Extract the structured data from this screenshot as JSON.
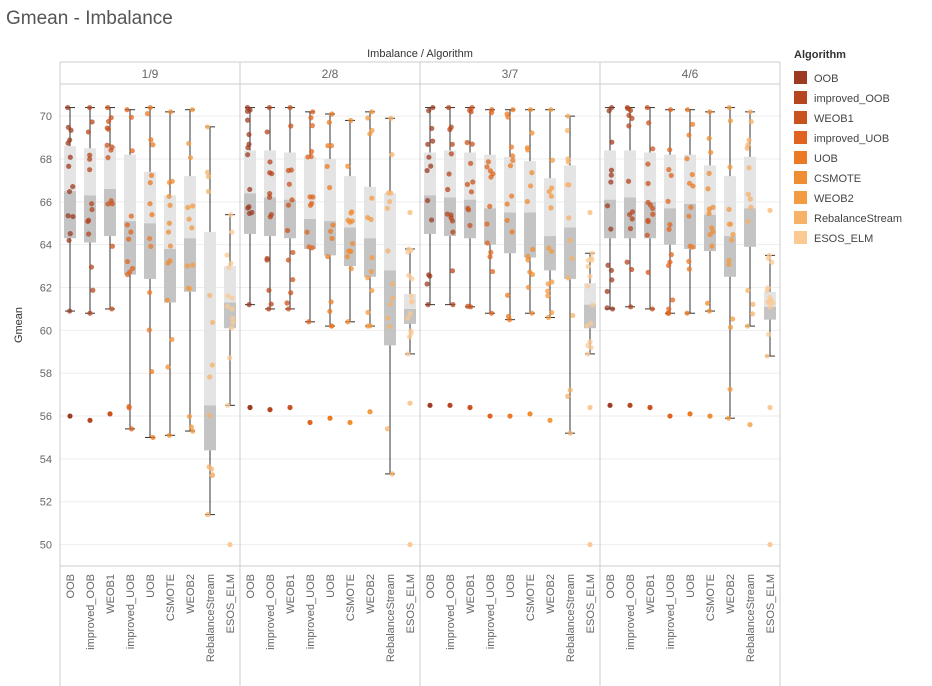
{
  "title": "Gmean - Imbalance",
  "chart_data": {
    "type": "box",
    "title": "Gmean - Imbalance",
    "header_title": "Imbalance / Algorithm",
    "ylabel": "Gmean",
    "ylim": [
      49,
      71.5
    ],
    "yticks": [
      50,
      52,
      54,
      56,
      58,
      60,
      62,
      64,
      66,
      68,
      70
    ],
    "grid": true,
    "legend_title": "Algorithm",
    "legend_position": "right",
    "facets": [
      "1/9",
      "2/8",
      "3/7",
      "4/6"
    ],
    "algorithms": [
      "OOB",
      "improved_OOB",
      "WEOB1",
      "improved_UOB",
      "UOB",
      "CSMOTE",
      "WEOB2",
      "RebalanceStream",
      "ESOS_ELM"
    ],
    "colors": [
      "#9c3b22",
      "#b5461f",
      "#c9531f",
      "#e0641f",
      "#ec7a24",
      "#f08c31",
      "#f39b40",
      "#f7b26a",
      "#fbc994"
    ],
    "boxes": {
      "1/9": [
        {
          "algorithm": "OOB",
          "min": 60.9,
          "q1": 64.3,
          "median": 66.5,
          "q3": 68.6,
          "max": 70.4,
          "outliers": [
            56.0
          ]
        },
        {
          "algorithm": "improved_OOB",
          "min": 60.8,
          "q1": 64.1,
          "median": 66.3,
          "q3": 68.5,
          "max": 70.4,
          "outliers": [
            55.8
          ]
        },
        {
          "algorithm": "WEOB1",
          "min": 61.0,
          "q1": 64.4,
          "median": 66.6,
          "q3": 68.6,
          "max": 70.4,
          "outliers": [
            56.1
          ]
        },
        {
          "algorithm": "improved_UOB",
          "min": 55.4,
          "q1": 62.6,
          "median": 65.1,
          "q3": 68.2,
          "max": 70.3,
          "outliers": []
        },
        {
          "algorithm": "UOB",
          "min": 55.0,
          "q1": 62.4,
          "median": 65.0,
          "q3": 67.4,
          "max": 70.4,
          "outliers": []
        },
        {
          "algorithm": "CSMOTE",
          "min": 55.1,
          "q1": 61.3,
          "median": 63.8,
          "q3": 66.3,
          "max": 70.2,
          "outliers": []
        },
        {
          "algorithm": "WEOB2",
          "min": 55.3,
          "q1": 61.8,
          "median": 64.3,
          "q3": 67.2,
          "max": 70.3,
          "outliers": []
        },
        {
          "algorithm": "RebalanceStream",
          "min": 51.4,
          "q1": 54.4,
          "median": 56.5,
          "q3": 64.6,
          "max": 69.5,
          "outliers": []
        },
        {
          "algorithm": "ESOS_ELM",
          "min": 56.5,
          "q1": 60.1,
          "median": 61.3,
          "q3": 63.0,
          "max": 65.4,
          "outliers": [
            50.0
          ]
        }
      ],
      "2/8": [
        {
          "algorithm": "OOB",
          "min": 61.2,
          "q1": 64.5,
          "median": 66.4,
          "q3": 68.4,
          "max": 70.4,
          "outliers": [
            56.4
          ]
        },
        {
          "algorithm": "improved_OOB",
          "min": 61.0,
          "q1": 64.4,
          "median": 66.2,
          "q3": 68.4,
          "max": 70.4,
          "outliers": [
            56.3
          ]
        },
        {
          "algorithm": "WEOB1",
          "min": 61.0,
          "q1": 64.3,
          "median": 66.1,
          "q3": 68.3,
          "max": 70.4,
          "outliers": [
            56.4
          ]
        },
        {
          "algorithm": "improved_UOB",
          "min": 60.4,
          "q1": 63.8,
          "median": 65.2,
          "q3": 68.1,
          "max": 70.2,
          "outliers": [
            55.7
          ]
        },
        {
          "algorithm": "UOB",
          "min": 60.2,
          "q1": 63.5,
          "median": 65.1,
          "q3": 68.0,
          "max": 70.1,
          "outliers": [
            55.9
          ]
        },
        {
          "algorithm": "CSMOTE",
          "min": 60.4,
          "q1": 63.0,
          "median": 64.8,
          "q3": 67.2,
          "max": 69.8,
          "outliers": [
            55.7
          ]
        },
        {
          "algorithm": "WEOB2",
          "min": 60.2,
          "q1": 62.5,
          "median": 64.3,
          "q3": 66.7,
          "max": 70.2,
          "outliers": [
            56.2
          ]
        },
        {
          "algorithm": "RebalanceStream",
          "min": 53.3,
          "q1": 59.3,
          "median": 62.8,
          "q3": 66.4,
          "max": 69.9,
          "outliers": []
        },
        {
          "algorithm": "ESOS_ELM",
          "min": 58.9,
          "q1": 60.3,
          "median": 61.0,
          "q3": 61.7,
          "max": 63.8,
          "outliers": [
            65.5,
            56.6,
            50.0
          ]
        }
      ],
      "3/7": [
        {
          "algorithm": "OOB",
          "min": 61.2,
          "q1": 64.5,
          "median": 66.3,
          "q3": 68.3,
          "max": 70.4,
          "outliers": [
            56.5
          ]
        },
        {
          "algorithm": "improved_OOB",
          "min": 61.2,
          "q1": 64.4,
          "median": 66.2,
          "q3": 68.4,
          "max": 70.4,
          "outliers": [
            56.5
          ]
        },
        {
          "algorithm": "WEOB1",
          "min": 61.1,
          "q1": 64.3,
          "median": 66.1,
          "q3": 68.3,
          "max": 70.4,
          "outliers": [
            56.4
          ]
        },
        {
          "algorithm": "improved_UOB",
          "min": 60.8,
          "q1": 64.0,
          "median": 65.7,
          "q3": 68.2,
          "max": 70.3,
          "outliers": [
            56.0
          ]
        },
        {
          "algorithm": "UOB",
          "min": 60.5,
          "q1": 63.6,
          "median": 65.5,
          "q3": 68.1,
          "max": 70.3,
          "outliers": [
            56.0
          ]
        },
        {
          "algorithm": "CSMOTE",
          "min": 60.8,
          "q1": 63.4,
          "median": 65.5,
          "q3": 67.9,
          "max": 70.3,
          "outliers": [
            56.1
          ]
        },
        {
          "algorithm": "WEOB2",
          "min": 60.6,
          "q1": 62.8,
          "median": 64.4,
          "q3": 67.1,
          "max": 70.3,
          "outliers": [
            55.8
          ]
        },
        {
          "algorithm": "RebalanceStream",
          "min": 55.2,
          "q1": 62.4,
          "median": 64.8,
          "q3": 67.7,
          "max": 70.0,
          "outliers": []
        },
        {
          "algorithm": "ESOS_ELM",
          "min": 58.9,
          "q1": 60.1,
          "median": 61.2,
          "q3": 62.2,
          "max": 63.6,
          "outliers": [
            65.5,
            56.4,
            50.0
          ]
        }
      ],
      "4/6": [
        {
          "algorithm": "OOB",
          "min": 61.0,
          "q1": 64.3,
          "median": 66.1,
          "q3": 68.4,
          "max": 70.4,
          "outliers": [
            56.5
          ]
        },
        {
          "algorithm": "improved_OOB",
          "min": 61.1,
          "q1": 64.3,
          "median": 66.2,
          "q3": 68.4,
          "max": 70.4,
          "outliers": [
            56.5
          ]
        },
        {
          "algorithm": "WEOB1",
          "min": 61.0,
          "q1": 64.3,
          "median": 66.0,
          "q3": 68.3,
          "max": 70.4,
          "outliers": [
            56.4
          ]
        },
        {
          "algorithm": "improved_UOB",
          "min": 60.8,
          "q1": 64.0,
          "median": 65.7,
          "q3": 68.2,
          "max": 70.3,
          "outliers": [
            56.0
          ]
        },
        {
          "algorithm": "UOB",
          "min": 60.8,
          "q1": 63.8,
          "median": 65.9,
          "q3": 68.2,
          "max": 70.3,
          "outliers": [
            56.1
          ]
        },
        {
          "algorithm": "CSMOTE",
          "min": 60.9,
          "q1": 63.7,
          "median": 65.4,
          "q3": 67.7,
          "max": 70.2,
          "outliers": [
            56.0
          ]
        },
        {
          "algorithm": "WEOB2",
          "min": 55.9,
          "q1": 62.5,
          "median": 64.4,
          "q3": 67.2,
          "max": 70.4,
          "outliers": []
        },
        {
          "algorithm": "RebalanceStream",
          "min": 60.2,
          "q1": 63.9,
          "median": 65.7,
          "q3": 68.1,
          "max": 70.2,
          "outliers": [
            55.6
          ]
        },
        {
          "algorithm": "ESOS_ELM",
          "min": 58.8,
          "q1": 60.5,
          "median": 61.1,
          "q3": 61.8,
          "max": 63.5,
          "outliers": [
            65.6,
            56.4,
            50.0
          ]
        }
      ]
    }
  }
}
